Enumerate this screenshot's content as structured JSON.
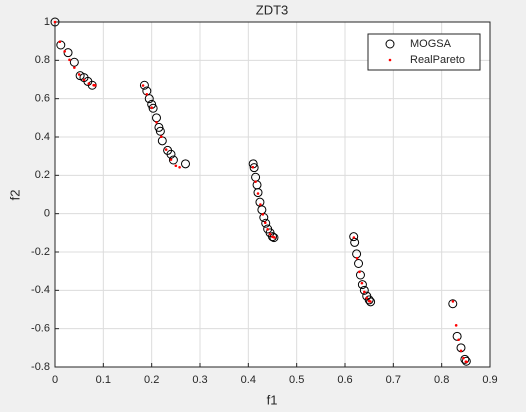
{
  "chart_data": {
    "type": "scatter",
    "title": "ZDT3",
    "x_label": "f1",
    "y_label": "f2",
    "xlim": [
      0,
      0.9
    ],
    "xticks": [
      0,
      0.1,
      0.2,
      0.3,
      0.4,
      0.5,
      0.6,
      0.7,
      0.8,
      0.9
    ],
    "ylim": [
      -0.8,
      1
    ],
    "yticks": [
      -0.8,
      -0.6,
      -0.4,
      -0.2,
      0,
      0.2,
      0.4,
      0.6,
      0.8,
      1
    ],
    "grid": true,
    "legend": "northeast",
    "series": [
      {
        "name": "MOGSA",
        "color": "#000000",
        "marker": "o",
        "x": [
          0,
          0.012,
          0.027,
          0.04,
          0.052,
          0.06,
          0.068,
          0.077,
          0.185,
          0.19,
          0.195,
          0.2,
          0.203,
          0.21,
          0.215,
          0.218,
          0.222,
          0.233,
          0.24,
          0.245,
          0.27,
          0.41,
          0.412,
          0.415,
          0.418,
          0.42,
          0.424,
          0.428,
          0.432,
          0.436,
          0.44,
          0.445,
          0.45,
          0.453,
          0.618,
          0.62,
          0.624,
          0.628,
          0.632,
          0.636,
          0.64,
          0.645,
          0.65,
          0.653,
          0.823,
          0.832,
          0.84,
          0.848,
          0.851
        ],
        "values": [
          1,
          0.88,
          0.84,
          0.79,
          0.72,
          0.71,
          0.69,
          0.67,
          0.67,
          0.64,
          0.6,
          0.57,
          0.55,
          0.5,
          0.45,
          0.43,
          0.38,
          0.33,
          0.31,
          0.28,
          0.26,
          0.26,
          0.24,
          0.19,
          0.15,
          0.11,
          0.06,
          0.02,
          -0.02,
          -0.05,
          -0.08,
          -0.1,
          -0.12,
          -0.125,
          -0.12,
          -0.15,
          -0.21,
          -0.26,
          -0.32,
          -0.37,
          -0.4,
          -0.43,
          -0.45,
          -0.46,
          -0.47,
          -0.64,
          -0.7,
          -0.76,
          -0.77
        ]
      },
      {
        "name": "RealPareto",
        "color": "#ff0000",
        "marker": ".",
        "x": [
          0,
          0.01,
          0.02,
          0.03,
          0.04,
          0.05,
          0.06,
          0.07,
          0.08,
          0.083,
          0.1822,
          0.19,
          0.2,
          0.21,
          0.22,
          0.23,
          0.24,
          0.25,
          0.2578,
          0.4093,
          0.415,
          0.42,
          0.425,
          0.43,
          0.435,
          0.44,
          0.445,
          0.45,
          0.4539,
          0.6184,
          0.625,
          0.63,
          0.635,
          0.64,
          0.645,
          0.65,
          0.6525,
          0.8233,
          0.83,
          0.835,
          0.84,
          0.845,
          0.85,
          0.8518
        ],
        "values": [
          1,
          0.897,
          0.8468,
          0.8025,
          0.762,
          0.7264,
          0.698,
          0.6788,
          0.6702,
          0.6695,
          0.6686,
          0.6228,
          0.5528,
          0.4768,
          0.4016,
          0.3343,
          0.2819,
          0.25,
          0.2421,
          0.2424,
          0.1671,
          0.105,
          0.0476,
          -0.0036,
          -0.0471,
          -0.0817,
          -0.1066,
          -0.1208,
          -0.1242,
          -0.1243,
          -0.2325,
          -0.3034,
          -0.3627,
          -0.4086,
          -0.4402,
          -0.4562,
          -0.4583,
          -0.4578,
          -0.5825,
          -0.6578,
          -0.7153,
          -0.7538,
          -0.772,
          -0.7733
        ]
      }
    ]
  }
}
